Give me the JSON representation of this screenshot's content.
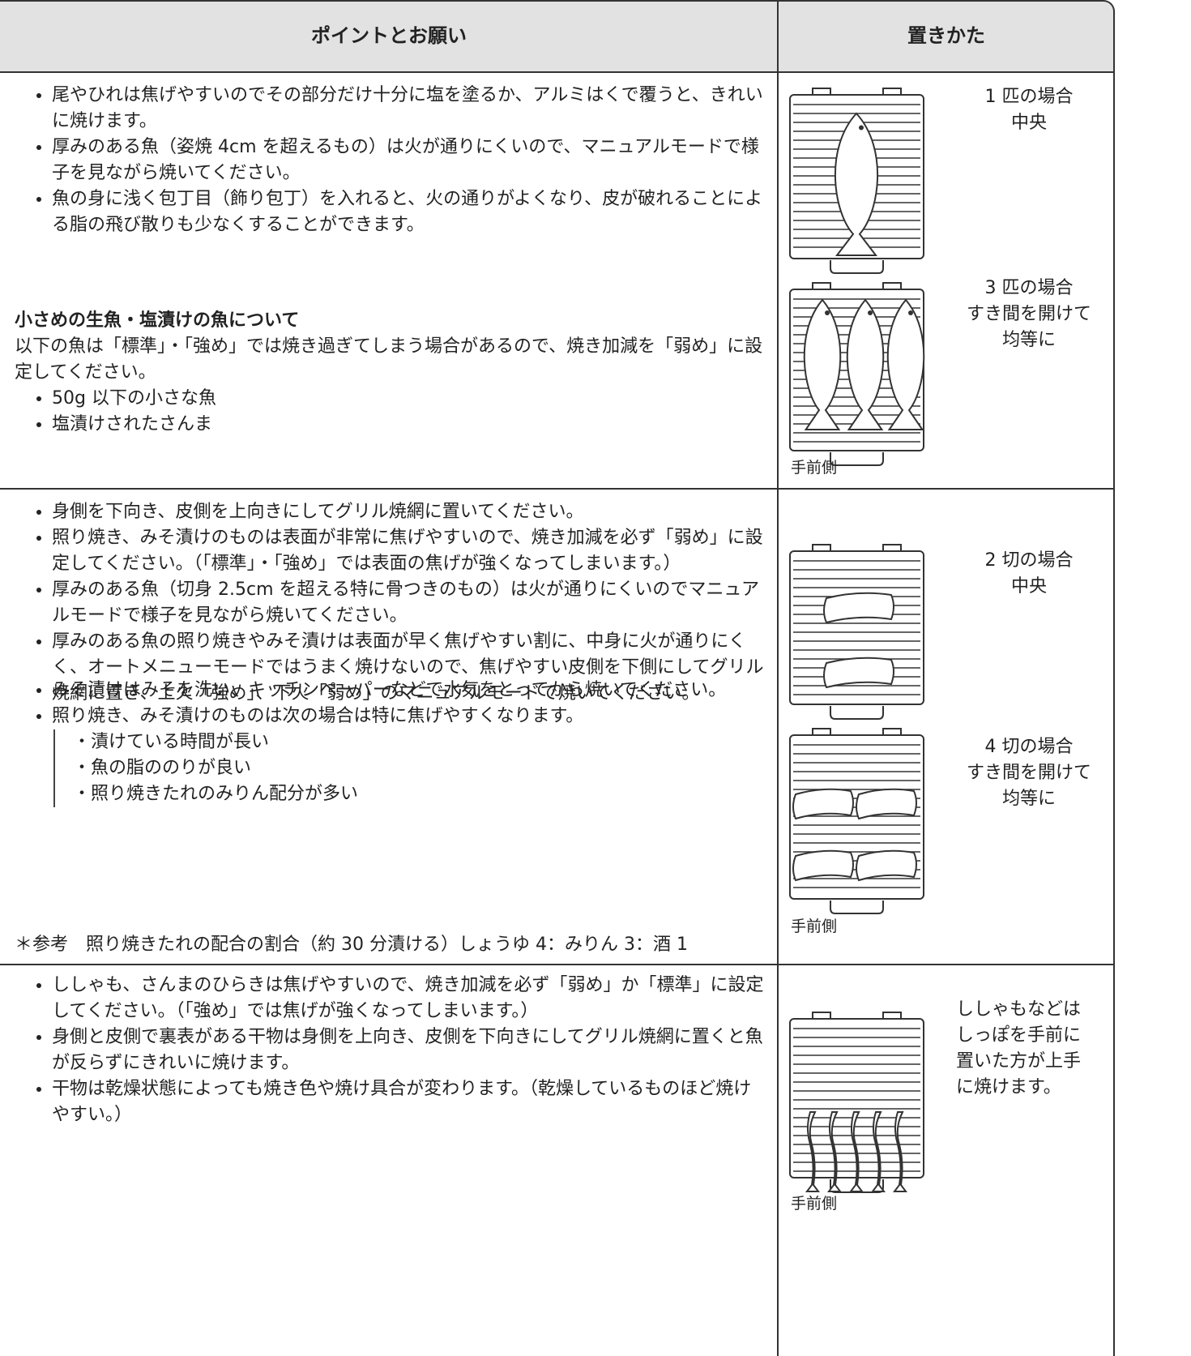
{
  "header": {
    "points": "ポイントとお願い",
    "placement": "置きかた"
  },
  "rows": [
    {
      "bullets": [
        "尾やひれは焦げやすいのでその部分だけ十分に塩を塗るか、アルミはくで覆うと、きれいに焼けます。",
        "厚みのある魚（姿焼 4cm を超えるもの）は火が通りにくいので、マニュアルモードで様子を見ながら焼いてください。",
        "魚の身に浅く包丁目（飾り包丁）を入れると、火の通りがよくなり、皮が破れることによる脂の飛び散りも少なくすることができます。"
      ],
      "note": {
        "title": "小さめの生魚・塩漬けの魚について",
        "text": "以下の魚は「標準」・「強め」では焼き過ぎてしまう場合があるので、焼き加減を「弱め」に設定してください。",
        "items": [
          "50g 以下の小さな魚",
          "塩漬けされたさんま"
        ]
      },
      "placements": [
        [
          "1 匹の場合",
          "中央"
        ],
        [
          "3 匹の場合",
          "すき間を開けて",
          "均等に"
        ]
      ],
      "front_label": "手前側"
    },
    {
      "bullets": [
        "身側を下向き、皮側を上向きにしてグリル焼網に置いてください。",
        "照り焼き、みそ漬けのものは表面が非常に焦げやすいので、焼き加減を必ず「弱め」に設定してください。（「標準」・「強め」では表面の焦げが強くなってしまいます。）",
        "厚みのある魚（切身 2.5cm を超える特に骨つきのもの）は火が通りにくいのでマニュアルモードで様子を見ながら焼いてください。",
        "厚みのある魚の照り焼きやみそ漬けは表面が早く焦げやすい割に、中身に火が通りにくく、オートメニューモードではうまく焼けないので、焦げやすい皮側を下側にしてグリル焼網に置き、上火「強め」、下火「弱め」のマニュアルモードで焼いてください。"
      ],
      "bullets2": [
        "みそ漬けはみそを洗い、キッチンペーパーなどで水気をとってから焼いてください。",
        "照り焼き、みそ漬けのものは次の場合は特に焦げやすくなります。"
      ],
      "sub_items": [
        "・漬けている時間が長い",
        "・魚の脂ののりが良い",
        "・照り焼きたれのみりん配分が多い"
      ],
      "reference": "＊参考　照り焼きたれの配合の割合（約 30 分漬ける）しょうゆ 4：みりん 3：酒 1",
      "placements": [
        [
          "2 切の場合",
          "中央"
        ],
        [
          "4 切の場合",
          "すき間を開けて",
          "均等に"
        ]
      ],
      "front_label": "手前側"
    },
    {
      "bullets": [
        "ししゃも、さんまのひらきは焦げやすいので、焼き加減を必ず「弱め」か「標準」に設定してください。（「強め」では焦げが強くなってしまいます。）",
        "身側と皮側で裏表がある干物は身側を上向き、皮側を下向きにしてグリル焼網に置くと魚が反らずにきれいに焼けます。",
        "干物は乾燥状態によっても焼き色や焼け具合が変わります。（乾燥しているものほど焼けやすい。）"
      ],
      "placements": [
        [
          "ししゃもなどは",
          "しっぽを手前に",
          "置いた方が上手",
          "に焼けます。"
        ]
      ],
      "front_label": "手前側"
    }
  ]
}
